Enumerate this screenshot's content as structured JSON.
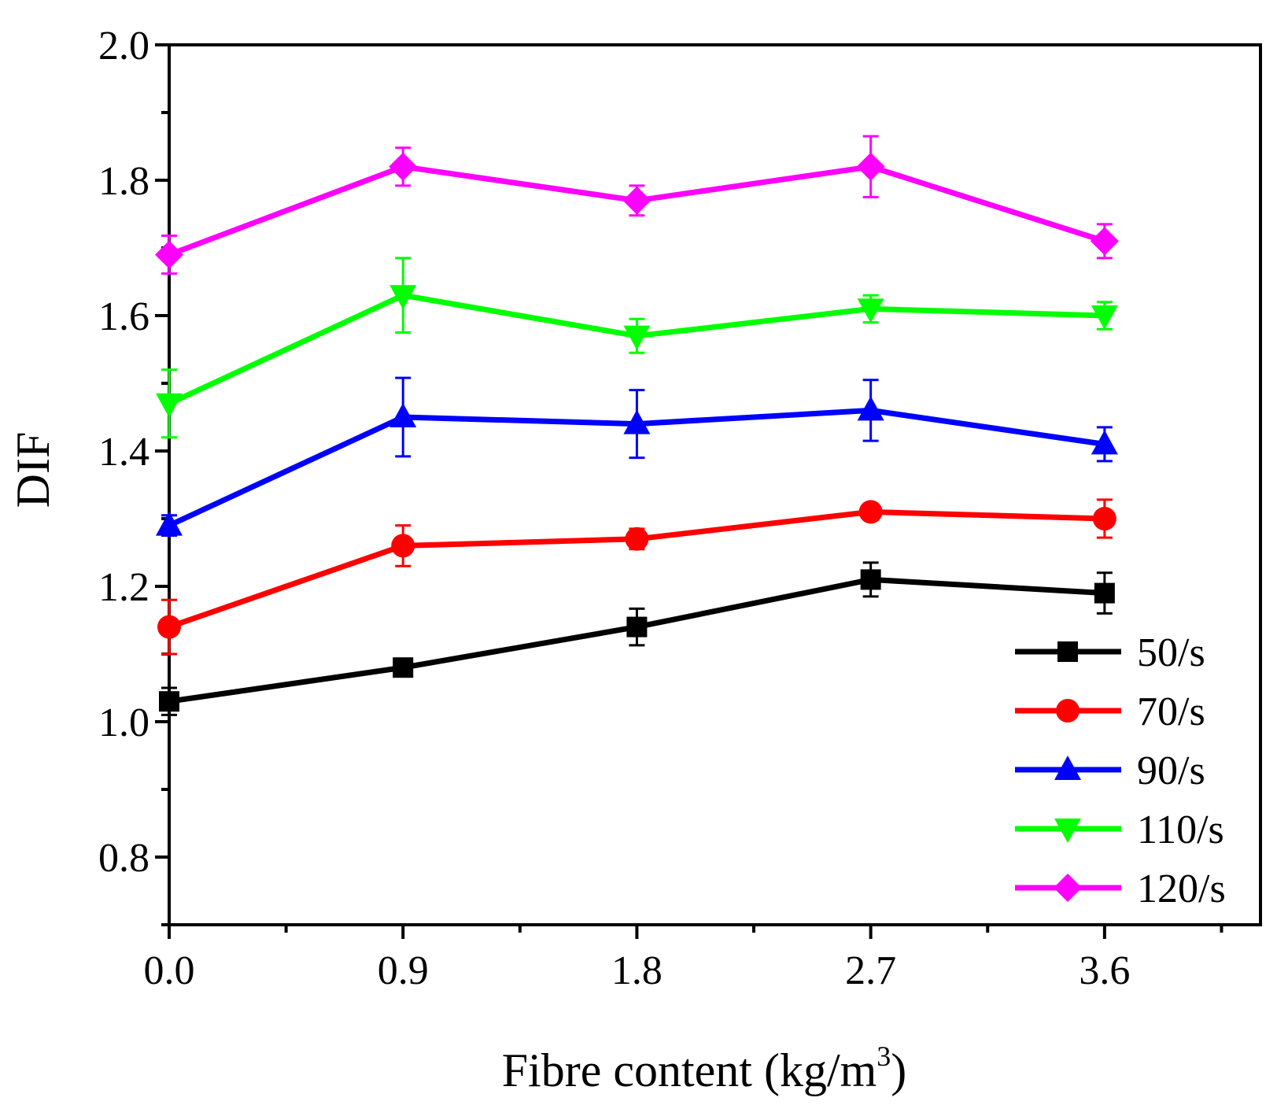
{
  "chart_data": {
    "type": "line",
    "title": "",
    "xlabel": "Fibre content (kg/m",
    "xlabel_superscript": "3",
    "xlabel_suffix": ")",
    "ylabel": "DIF",
    "xlim": [
      0.0,
      4.2
    ],
    "ylim": [
      0.7,
      2.0
    ],
    "x_ticks": [
      0.0,
      0.9,
      1.8,
      2.7,
      3.6
    ],
    "x_tick_labels": [
      "0.0",
      "0.9",
      "1.8",
      "2.7",
      "3.6"
    ],
    "y_ticks": [
      0.8,
      1.0,
      1.2,
      1.4,
      1.6,
      1.8,
      2.0
    ],
    "y_tick_labels": [
      "0.8",
      "1.0",
      "1.2",
      "1.4",
      "1.6",
      "1.8",
      "2.0"
    ],
    "grid": false,
    "legend_position": "bottom-right",
    "x": [
      0.0,
      0.9,
      1.8,
      2.7,
      3.6
    ],
    "series": [
      {
        "name": "50/s",
        "color": "#000000",
        "marker": "square",
        "values": [
          1.03,
          1.08,
          1.14,
          1.21,
          1.19
        ],
        "errors": [
          0.02,
          0.0,
          0.027,
          0.025,
          0.03
        ]
      },
      {
        "name": "70/s",
        "color": "#ff0000",
        "marker": "circle",
        "values": [
          1.14,
          1.26,
          1.27,
          1.31,
          1.3
        ],
        "errors": [
          0.04,
          0.03,
          0.015,
          0.0,
          0.028
        ]
      },
      {
        "name": "90/s",
        "color": "#0000ff",
        "marker": "triangle-up",
        "values": [
          1.29,
          1.45,
          1.44,
          1.46,
          1.41
        ],
        "errors": [
          0.015,
          0.058,
          0.05,
          0.045,
          0.025
        ]
      },
      {
        "name": "110/s",
        "color": "#00ff00",
        "marker": "triangle-down",
        "values": [
          1.47,
          1.63,
          1.57,
          1.61,
          1.6
        ],
        "errors": [
          0.05,
          0.055,
          0.025,
          0.02,
          0.02
        ]
      },
      {
        "name": "120/s",
        "color": "#ff00ff",
        "marker": "diamond",
        "values": [
          1.69,
          1.82,
          1.77,
          1.82,
          1.71
        ],
        "errors": [
          0.028,
          0.028,
          0.022,
          0.045,
          0.025
        ]
      }
    ]
  }
}
